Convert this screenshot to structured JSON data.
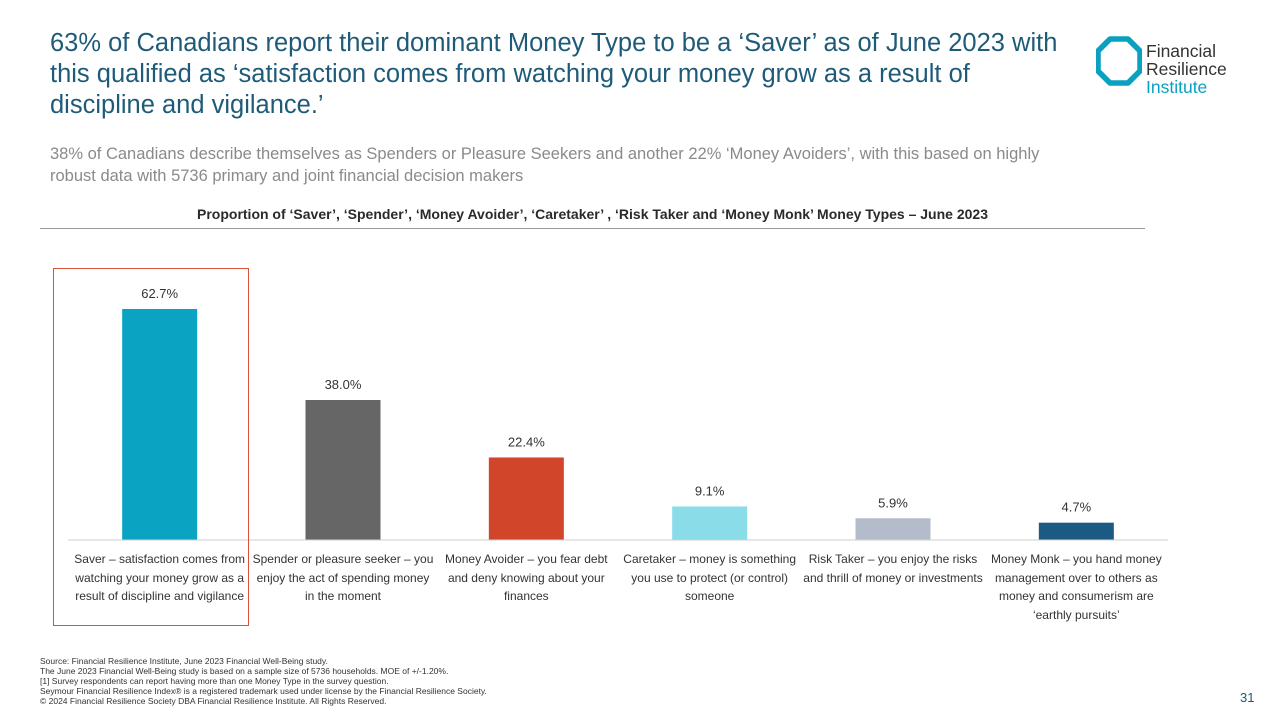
{
  "title": "63% of Canadians report their dominant Money Type to be a ‘Saver’ as of June 2023 with this qualified as ‘satisfaction comes from watching your money grow as a result of discipline and vigilance.’",
  "subtitle": "38% of Canadians describe themselves as Spenders or Pleasure Seekers and another 22% ‘Money Avoiders’, with this based on highly robust data with 5736 primary and joint financial decision makers",
  "logo": {
    "line1": "Financial",
    "line2": "Resilience",
    "line3": "Institute",
    "color": "#0aa0c0",
    "icon": "octagon-ring-icon"
  },
  "chart_data": {
    "type": "bar",
    "title": "Proportion of ‘Saver’, ‘Spender’, ‘Money Avoider’, ‘Caretaker’ , ‘Risk Taker and ‘Money Monk’ Money Types – June 2023",
    "categories": [
      "Saver – satisfaction comes from watching your money grow as a result of discipline and vigilance",
      "Spender or pleasure seeker – you enjoy the act of spending money in the moment",
      "Money Avoider – you fear debt and deny knowing about your finances",
      "Caretaker – money is something you use to protect (or control) someone",
      "Risk Taker – you enjoy the risks and thrill of money or investments",
      "Money Monk – you hand money management over to others as money and consumerism are ‘earthly pursuits’"
    ],
    "values": [
      62.7,
      38.0,
      22.4,
      9.1,
      5.9,
      4.7
    ],
    "data_labels": [
      "62.7%",
      "38.0%",
      "22.4%",
      "9.1%",
      "5.9%",
      "4.7%"
    ],
    "colors": [
      "#0aa3c2",
      "#666666",
      "#d1452a",
      "#8adce8",
      "#b4bccb",
      "#1b5a82"
    ],
    "ylim": [
      0,
      62.7
    ],
    "grid": false,
    "highlighted_category_index": 0,
    "highlight_color": "#d9533b"
  },
  "footnotes": [
    "Source: Financial Resilience Institute, June 2023 Financial Well-Being study.",
    "The June 2023 Financial Well-Being study is based on a sample size of 5736 households. MOE of +/-1.20%.",
    "[1]  Survey respondents can report having more than one Money Type in the survey question.",
    "Seymour Financial Resilience Index® is a registered trademark used under license by the Financial Resilience Society.",
    "© 2024 Financial Resilience Society DBA Financial Resilience Institute. All Rights Reserved."
  ],
  "page_number": "31"
}
